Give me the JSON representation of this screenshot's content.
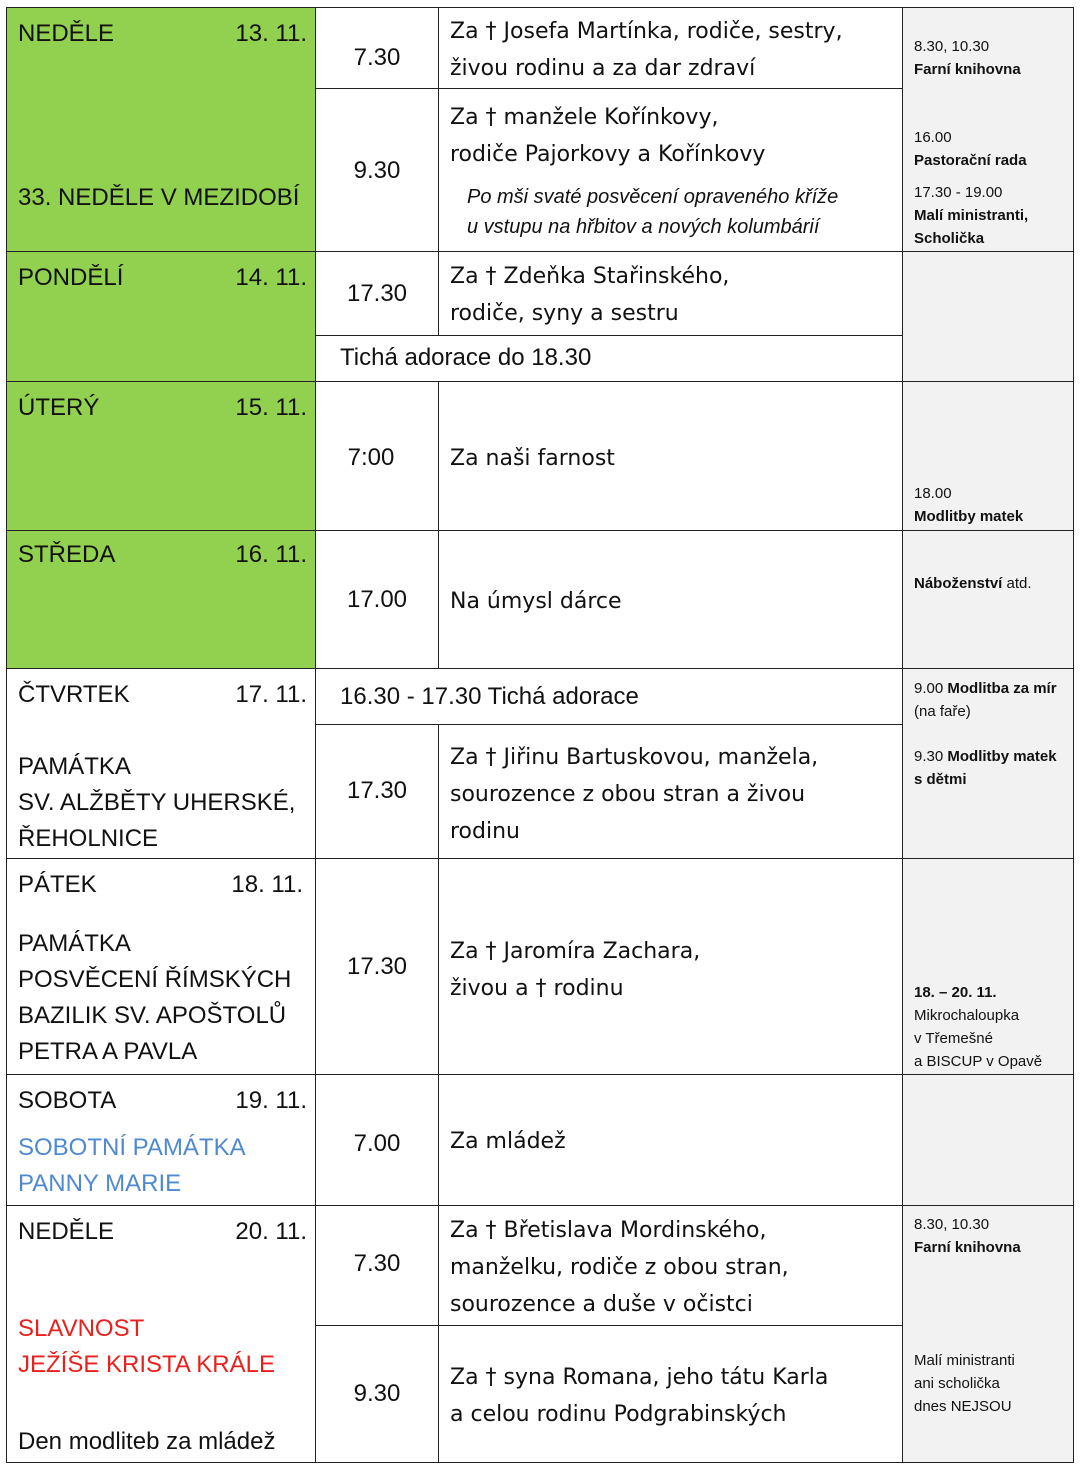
{
  "colors": {
    "day_bg": "#92d050",
    "notes_bg": "#f2f2f2",
    "memorial_blue": "#4f8ad0",
    "solemnity_red": "#e8201e"
  },
  "days": [
    {
      "name": "NEDĚLE",
      "date": "13. 11.",
      "feast": "33. NEDĚLE V MEZIDOBÍ",
      "masses": [
        {
          "time": "7.30",
          "intention": "Za † Josefa Martínka, rodiče, sestry,\nživou rodinu a za dar zdraví"
        },
        {
          "time": "9.30",
          "intention": "Za † manžele Kořínkovy,\nrodiče Pajorkovy a Kořínkovy",
          "note": "Po mši svaté posvěcení opraveného kříže\nu vstupu na hřbitov a nových kolumbárií"
        }
      ],
      "notes": [
        {
          "time": "8.30, 10.30",
          "text": "Farní knihovna"
        },
        {
          "time": "16.00",
          "text": "Pastorační rada"
        },
        {
          "time": "17.30 - 19.00",
          "text": "Malí ministranti,\nScholička"
        }
      ]
    },
    {
      "name": "PONDĚLÍ",
      "date": "14. 11.",
      "masses": [
        {
          "time": "17.30",
          "intention": "Za † Zdeňka Stařinského,\nrodiče, syny a sestru"
        }
      ],
      "adoration": "Tichá adorace do 18.30"
    },
    {
      "name": "ÚTERÝ",
      "date": "15. 11.",
      "masses": [
        {
          "time": "7:00",
          "intention": "Za naši farnost"
        }
      ],
      "notes": [
        {
          "time": "18.00",
          "text": "Modlitby matek"
        }
      ]
    },
    {
      "name": "STŘEDA",
      "date": "16. 11.",
      "masses": [
        {
          "time": "17.00",
          "intention": "Na úmysl dárce"
        }
      ],
      "notes": [
        {
          "text": "Náboženství",
          "suffix": " atd."
        }
      ]
    },
    {
      "name": "ČTVRTEK",
      "date": "17. 11.",
      "feast": "PAMÁTKA\nSV. ALŽBĚTY UHERSKÉ,\nŘEHOLNICE",
      "adoration": "16.30  - 17.30 Tichá adorace",
      "masses": [
        {
          "time": "17.30",
          "intention": "Za † Jiřinu Bartuskovou, manžela,\nsourozence z obou stran a živou\nrodinu"
        }
      ],
      "notes": [
        {
          "time": "9.00",
          "text": "Modlitba za\nmír",
          "suffix": " (na faře)"
        },
        {
          "time": "9.30",
          "text": "Modlitby\nmatek s dětmi"
        }
      ]
    },
    {
      "name": "PÁTEK",
      "date": "18. 11.",
      "feast": "PAMÁTKA\nPOSVĚCENÍ ŘÍMSKÝCH\nBAZILIK SV. APOŠTOLŮ\nPETRA A PAVLA",
      "masses": [
        {
          "time": "17.30",
          "intention": "Za † Jaromíra Zachara,\nživou a † rodinu"
        }
      ],
      "notes": [
        {
          "time": "18. – 20. 11.",
          "text": "Mikrochaloupka\nv Třemešné\na BISCUP v Opavě"
        }
      ]
    },
    {
      "name": "SOBOTA",
      "date": "19. 11.",
      "feast": "SOBOTNÍ PAMÁTKA\nPANNY MARIE",
      "masses": [
        {
          "time": "7.00",
          "intention": "Za mládež"
        }
      ]
    },
    {
      "name": "NEDĚLE",
      "date": "20. 11.",
      "feast": "SLAVNOST\nJEŽÍŠE KRISTA KRÁLE",
      "extra": "Den modliteb za mládež",
      "masses": [
        {
          "time": "7.30",
          "intention": "Za † Břetislava Mordinského,\nmanželku, rodiče z obou stran,\nsourozence a duše v očistci"
        },
        {
          "time": "9.30",
          "intention": "Za † syna Romana, jeho tátu Karla\na celou rodinu Podgrabinských"
        }
      ],
      "notes": [
        {
          "time": "8.30, 10.30",
          "text": "Farní knihovna"
        },
        {
          "text": "Malí ministranti\nani scholička\ndnes NEJSOU"
        }
      ]
    }
  ]
}
